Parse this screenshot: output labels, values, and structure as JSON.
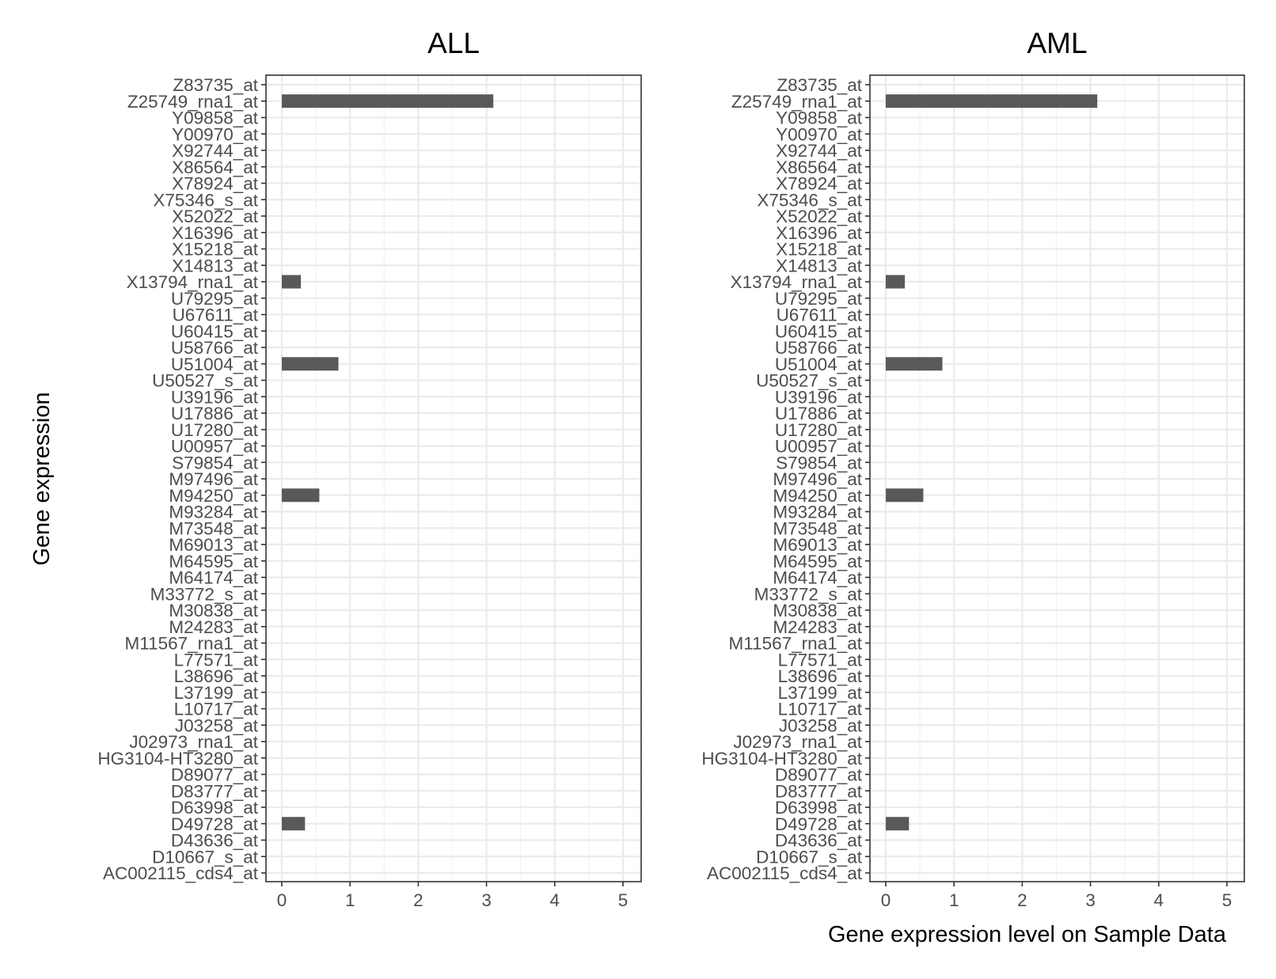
{
  "chart_data": {
    "type": "bar",
    "orientation": "horizontal",
    "ylabel": "Gene expression",
    "xlabel": "Gene expression level on Sample Data",
    "xlim": [
      0,
      5
    ],
    "x_ticks": [
      "0",
      "1",
      "2",
      "3",
      "4",
      "5"
    ],
    "grid": true,
    "bar_color": "#595959",
    "categories": [
      "Z83735_at",
      "Z25749_rna1_at",
      "Y09858_at",
      "Y00970_at",
      "X92744_at",
      "X86564_at",
      "X78924_at",
      "X75346_s_at",
      "X52022_at",
      "X16396_at",
      "X15218_at",
      "X14813_at",
      "X13794_rna1_at",
      "U79295_at",
      "U67611_at",
      "U60415_at",
      "U58766_at",
      "U51004_at",
      "U50527_s_at",
      "U39196_at",
      "U17886_at",
      "U17280_at",
      "U00957_at",
      "S79854_at",
      "M97496_at",
      "M94250_at",
      "M93284_at",
      "M73548_at",
      "M69013_at",
      "M64595_at",
      "M64174_at",
      "M33772_s_at",
      "M30838_at",
      "M24283_at",
      "M11567_rna1_at",
      "L77571_at",
      "L38696_at",
      "L37199_at",
      "L10717_at",
      "J03258_at",
      "J02973_rna1_at",
      "HG3104-HT3280_at",
      "D89077_at",
      "D83777_at",
      "D63998_at",
      "D49728_at",
      "D43636_at",
      "D10667_s_at",
      "AC002115_cds4_at"
    ],
    "panels": [
      {
        "title": "ALL",
        "values": [
          0,
          3.1,
          0,
          0,
          0,
          0,
          0,
          0,
          0,
          0,
          0,
          0,
          0.28,
          0,
          0,
          0,
          0,
          0.83,
          0,
          0,
          0,
          0,
          0,
          0,
          0,
          0.55,
          0,
          0,
          0,
          0,
          0,
          0,
          0,
          0,
          0,
          0,
          0,
          0,
          0,
          0,
          0,
          0,
          0,
          0,
          0,
          0.34,
          0,
          0,
          0
        ]
      },
      {
        "title": "AML",
        "values": [
          0,
          3.1,
          0,
          0,
          0,
          0,
          0,
          0,
          0,
          0,
          0,
          0,
          0.28,
          0,
          0,
          0,
          0,
          0.83,
          0,
          0,
          0,
          0,
          0,
          0,
          0,
          0.55,
          0,
          0,
          0,
          0,
          0,
          0,
          0,
          0,
          0,
          0,
          0,
          0,
          0,
          0,
          0,
          0,
          0,
          0,
          0,
          0.34,
          0,
          0,
          0
        ]
      }
    ]
  }
}
